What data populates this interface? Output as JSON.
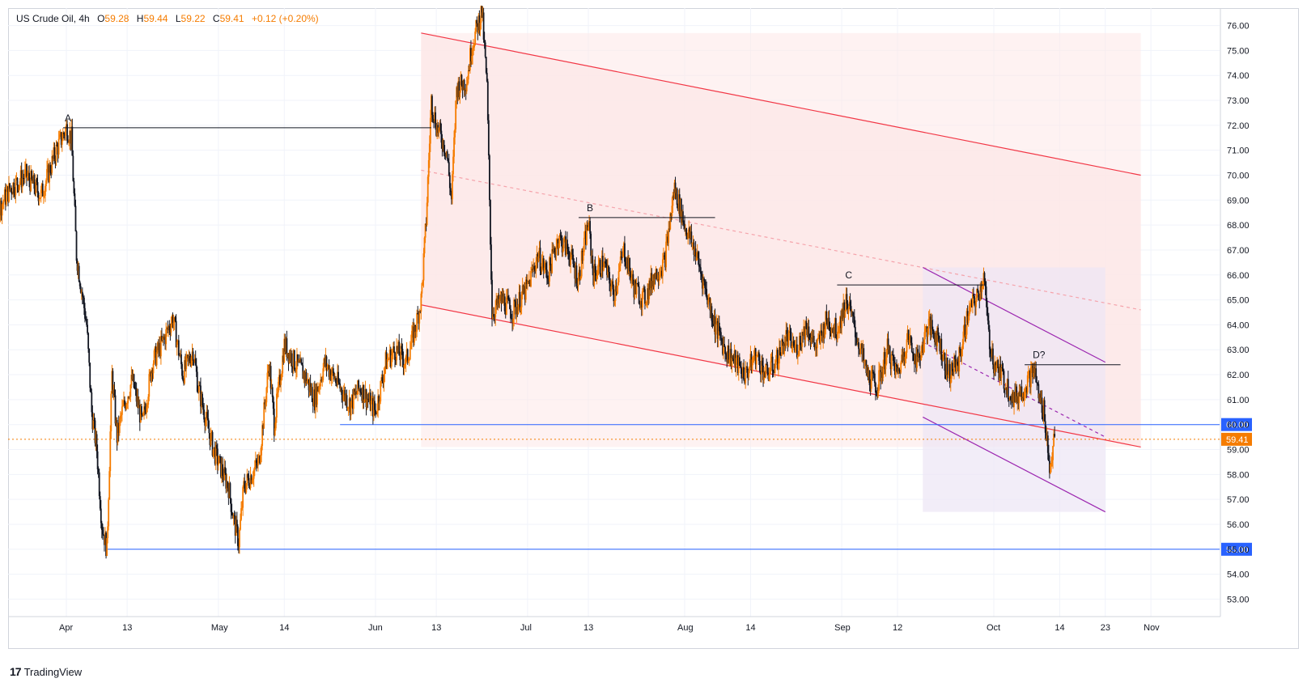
{
  "header": {
    "symbol": "US Crude Oil",
    "interval": "4h",
    "o_label": "O",
    "o_value": "59.28",
    "h_label": "H",
    "h_value": "59.44",
    "l_label": "L",
    "l_value": "59.22",
    "c_label": "C",
    "c_value": "59.41",
    "change": "+0.12 (+0.20%)"
  },
  "branding": {
    "logo_mark": "17",
    "name": "TradingView"
  },
  "colors": {
    "up": "#f57c00",
    "down": "#131722",
    "channel": "#f23645",
    "channel_fill": "#fde8e8",
    "wedge": "#9c27b0",
    "wedge_fill": "#ece6f5",
    "level": "#2962ff",
    "price_line": "#f57c00",
    "grid": "#f0f3fa",
    "axis_text": "#131722"
  },
  "chart_data": {
    "type": "candlestick",
    "title": "US Crude Oil, 4h",
    "ylim": [
      52.3,
      76.7
    ],
    "y_ticks": [
      "53.00",
      "54.00",
      "55.00",
      "56.00",
      "57.00",
      "58.00",
      "59.00",
      "60.00",
      "61.00",
      "62.00",
      "63.00",
      "64.00",
      "65.00",
      "66.00",
      "67.00",
      "68.00",
      "69.00",
      "70.00",
      "71.00",
      "72.00",
      "73.00",
      "74.00",
      "75.00",
      "76.00"
    ],
    "x_ticks": [
      "Apr",
      "13",
      "May",
      "14",
      "Jun",
      "13",
      "Jul",
      "13",
      "Aug",
      "14",
      "Sep",
      "12",
      "Oct",
      "14",
      "23",
      "Nov"
    ],
    "price_path": [
      [
        "Mar 14",
        66.8
      ],
      [
        "Mar 16",
        68.0
      ],
      [
        "Mar 18",
        68.4
      ],
      [
        "Mar 21",
        69.5
      ],
      [
        "Mar 24",
        70.0
      ],
      [
        "Mar 27",
        69.2
      ],
      [
        "Mar 30",
        71.0
      ],
      [
        "Apr 1",
        71.9
      ],
      [
        "Apr 2",
        71.5
      ],
      [
        "Apr 3",
        66.8
      ],
      [
        "Apr 5",
        64.0
      ],
      [
        "Apr 6",
        60.5
      ],
      [
        "Apr 7",
        59.0
      ],
      [
        "Apr 8",
        56.0
      ],
      [
        "Apr 9",
        55.0
      ],
      [
        "Apr 10",
        62.0
      ],
      [
        "Apr 11",
        59.5
      ],
      [
        "Apr 12",
        60.5
      ],
      [
        "Apr 14",
        61.8
      ],
      [
        "Apr 16",
        60.0
      ],
      [
        "Apr 18",
        62.5
      ],
      [
        "Apr 20",
        63.3
      ],
      [
        "Apr 22",
        64.3
      ],
      [
        "Apr 24",
        62.0
      ],
      [
        "Apr 26",
        63.0
      ],
      [
        "Apr 27",
        61.5
      ],
      [
        "Apr 30",
        59.0
      ],
      [
        "May 3",
        57.5
      ],
      [
        "May 4",
        56.2
      ],
      [
        "May 5",
        55.3
      ],
      [
        "May 6",
        57.5
      ],
      [
        "May 9",
        58.5
      ],
      [
        "May 11",
        62.5
      ],
      [
        "May 12",
        60.0
      ],
      [
        "May 14",
        63.2
      ],
      [
        "May 16",
        62.5
      ],
      [
        "May 18",
        62.0
      ],
      [
        "May 20",
        61.0
      ],
      [
        "May 22",
        62.5
      ],
      [
        "May 25",
        61.5
      ],
      [
        "May 27",
        60.8
      ],
      [
        "May 29",
        61.5
      ],
      [
        "Jun 1",
        60.5
      ],
      [
        "Jun 3",
        62.5
      ],
      [
        "Jun 5",
        63.0
      ],
      [
        "Jun 7",
        62.5
      ],
      [
        "Jun 9",
        64.0
      ],
      [
        "Jun 10",
        65.0
      ],
      [
        "Jun 11",
        68.2
      ],
      [
        "Jun 12",
        73.0
      ],
      [
        "Jun 13",
        72.0
      ],
      [
        "Jun 15",
        71.0
      ],
      [
        "Jun 16",
        69.0
      ],
      [
        "Jun 17",
        73.5
      ],
      [
        "Jun 19",
        73.8
      ],
      [
        "Jun 20",
        75.2
      ],
      [
        "Jun 22",
        76.6
      ],
      [
        "Jun 23",
        73.5
      ],
      [
        "Jun 24",
        64.5
      ],
      [
        "Jun 26",
        65.0
      ],
      [
        "Jun 28",
        64.5
      ],
      [
        "Jul 1",
        65.5
      ],
      [
        "Jul 3",
        66.8
      ],
      [
        "Jul 5",
        66.0
      ],
      [
        "Jul 7",
        67.5
      ],
      [
        "Jul 9",
        67.0
      ],
      [
        "Jul 11",
        65.8
      ],
      [
        "Jul 13",
        68.1
      ],
      [
        "Jul 14",
        66.0
      ],
      [
        "Jul 16",
        66.5
      ],
      [
        "Jul 18",
        65.2
      ],
      [
        "Jul 20",
        67.0
      ],
      [
        "Jul 22",
        65.5
      ],
      [
        "Jul 24",
        65.0
      ],
      [
        "Jul 26",
        66.0
      ],
      [
        "Jul 28",
        66.5
      ],
      [
        "Jul 30",
        69.5
      ],
      [
        "Aug 1",
        68.0
      ],
      [
        "Aug 3",
        67.0
      ],
      [
        "Aug 5",
        65.5
      ],
      [
        "Aug 7",
        64.0
      ],
      [
        "Aug 9",
        63.0
      ],
      [
        "Aug 11",
        62.5
      ],
      [
        "Aug 13",
        62.0
      ],
      [
        "Aug 15",
        62.8
      ],
      [
        "Aug 17",
        62.0
      ],
      [
        "Aug 19",
        62.5
      ],
      [
        "Aug 21",
        63.5
      ],
      [
        "Aug 23",
        63.0
      ],
      [
        "Aug 25",
        64.0
      ],
      [
        "Aug 27",
        63.0
      ],
      [
        "Aug 29",
        64.2
      ],
      [
        "Aug 31",
        63.8
      ],
      [
        "Sep 2",
        65.0
      ],
      [
        "Sep 4",
        63.5
      ],
      [
        "Sep 6",
        62.0
      ],
      [
        "Sep 8",
        61.5
      ],
      [
        "Sep 10",
        63.0
      ],
      [
        "Sep 12",
        62.0
      ],
      [
        "Sep 14",
        63.5
      ],
      [
        "Sep 16",
        62.5
      ],
      [
        "Sep 18",
        64.0
      ],
      [
        "Sep 20",
        63.5
      ],
      [
        "Sep 22",
        62.0
      ],
      [
        "Sep 24",
        62.5
      ],
      [
        "Sep 26",
        64.5
      ],
      [
        "Sep 28",
        65.2
      ],
      [
        "Sep 29",
        66.0
      ],
      [
        "Sep 30",
        63.5
      ],
      [
        "Oct 1",
        62.5
      ],
      [
        "Oct 3",
        61.8
      ],
      [
        "Oct 5",
        61.0
      ],
      [
        "Oct 7",
        61.5
      ],
      [
        "Oct 9",
        62.2
      ],
      [
        "Oct 10",
        61.0
      ],
      [
        "Oct 11",
        60.5
      ],
      [
        "Oct 12",
        58.2
      ],
      [
        "Oct 13",
        59.5
      ]
    ],
    "last_price": 59.41,
    "price_tag": "59.41",
    "horizontal_levels": [
      {
        "price": 60.0,
        "tag": "60.00"
      },
      {
        "price": 55.0,
        "tag": "55.00"
      }
    ],
    "wave_labels": [
      {
        "text": "A",
        "date": "Apr 1",
        "price": 71.9,
        "line_to": "Jun 12"
      },
      {
        "text": "B",
        "date": "Jul 13",
        "price": 68.3,
        "line_to": "Aug 7"
      },
      {
        "text": "C",
        "date": "Sep 2",
        "price": 65.6,
        "line_to": "Sep 29"
      },
      {
        "text": "D?",
        "date": "Oct 9",
        "price": 62.4,
        "line_to": "Oct 26"
      }
    ],
    "channel": {
      "upper": [
        [
          "Jun 10",
          75.7
        ],
        [
          "Oct 30",
          70.0
        ]
      ],
      "lower": [
        [
          "Jun 10",
          64.8
        ],
        [
          "Oct 30",
          59.1
        ]
      ],
      "mid": [
        [
          "Jun 10",
          70.2
        ],
        [
          "Oct 30",
          64.6
        ]
      ]
    },
    "wedge": {
      "upper": [
        [
          "Sep 17",
          66.3
        ],
        [
          "Oct 23",
          62.5
        ]
      ],
      "lower": [
        [
          "Sep 17",
          60.3
        ],
        [
          "Oct 23",
          56.5
        ]
      ],
      "mid": [
        [
          "Sep 17",
          63.3
        ],
        [
          "Oct 23",
          59.5
        ]
      ]
    }
  }
}
